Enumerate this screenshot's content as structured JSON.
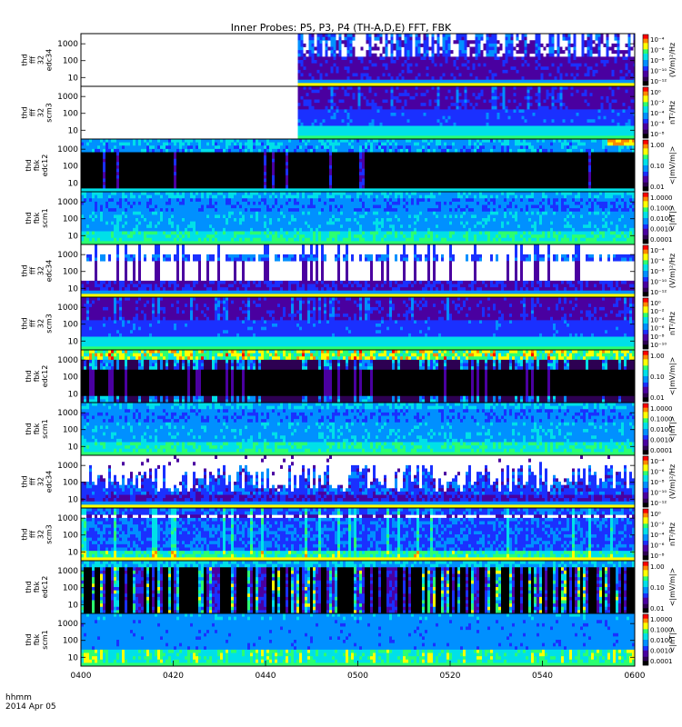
{
  "title": "Inner Probes: P5, P3, P4 (TH-A,D,E) FFT, FBK",
  "footer": {
    "format": "hhmm",
    "date": "2014 Apr 05"
  },
  "chart_data": {
    "type": "heatmap",
    "title": "Inner Probes: P5, P3, P4 (TH-A,D,E) FFT, FBK",
    "x_axis": {
      "ticks": [
        "0400",
        "0420",
        "0440",
        "0500",
        "0520",
        "0540",
        "0600"
      ],
      "start_minutes": 240,
      "end_minutes": 360,
      "format": "hhmm",
      "date": "2014 Apr 05"
    },
    "y_scale": "log",
    "colormap": [
      "#000000",
      "#2d0052",
      "#4a00a0",
      "#1a30ff",
      "#0090ff",
      "#00e0e8",
      "#2cff70",
      "#ffff00",
      "#ff8800",
      "#ff0000"
    ],
    "panels": [
      {
        "label": [
          "thd",
          "fff",
          "32",
          "edc34"
        ],
        "yticks": [
          "1000",
          "100",
          "10"
        ],
        "ylim": [
          3,
          4000
        ],
        "colorbar_ticks": [
          "10⁻⁴",
          "10⁻⁶",
          "10⁻⁸",
          "10⁻¹⁰",
          "10⁻¹²"
        ],
        "colorbar_label": "(V/m)²/Hz",
        "data_start_minutes": 287,
        "pattern": "efield_quiet"
      },
      {
        "label": [
          "thd",
          "fff",
          "32",
          "scm3"
        ],
        "yticks": [
          "1000",
          "100",
          "10"
        ],
        "ylim": [
          3,
          4000
        ],
        "colorbar_ticks": [
          "10⁰",
          "10⁻²",
          "10⁻⁴",
          "10⁻⁶",
          "10⁻⁸"
        ],
        "colorbar_label": "nT²/Hz",
        "data_start_minutes": 287,
        "pattern": "scm_fff"
      },
      {
        "label": [
          "thd",
          "fbk",
          "edc12"
        ],
        "yticks": [
          "1000",
          "100",
          "10"
        ],
        "ylim": [
          3,
          4000
        ],
        "colorbar_ticks": [
          "1.00",
          "0.10",
          "0.01"
        ],
        "colorbar_label": "<|mV/m|>",
        "pattern": "efbk_quiet"
      },
      {
        "label": [
          "thd",
          "fbk",
          "scm1"
        ],
        "yticks": [
          "1000",
          "100",
          "10"
        ],
        "ylim": [
          3,
          4000
        ],
        "colorbar_ticks": [
          "1.0000",
          "0.1000",
          "0.0100",
          "0.0010",
          "0.0001"
        ],
        "colorbar_label": "<|nT|>",
        "pattern": "scm_fbk"
      },
      {
        "label": [
          "thd",
          "fff",
          "32",
          "edc34"
        ],
        "yticks": [
          "1000",
          "100",
          "10"
        ],
        "ylim": [
          3,
          4000
        ],
        "colorbar_ticks": [
          "10⁻⁴",
          "10⁻⁶",
          "10⁻⁸",
          "10⁻¹⁰",
          "10⁻¹²"
        ],
        "colorbar_label": "(V/m)²/Hz",
        "pattern": "efield_mid"
      },
      {
        "label": [
          "thd",
          "fff",
          "32",
          "scm3"
        ],
        "yticks": [
          "1000",
          "100",
          "10"
        ],
        "ylim": [
          3,
          4000
        ],
        "colorbar_ticks": [
          "10⁰",
          "10⁻²",
          "10⁻⁴",
          "10⁻⁶",
          "10⁻⁸",
          "10⁻¹⁰"
        ],
        "colorbar_label": "nT²/Hz",
        "pattern": "scm_fff"
      },
      {
        "label": [
          "thd",
          "fbk",
          "edc12"
        ],
        "yticks": [
          "1000",
          "100",
          "10"
        ],
        "ylim": [
          3,
          4000
        ],
        "colorbar_ticks": [
          "1.00",
          "0.10",
          "0.01"
        ],
        "colorbar_label": "<|mV/m|>",
        "pattern": "efbk_active"
      },
      {
        "label": [
          "thd",
          "fbk",
          "scm1"
        ],
        "yticks": [
          "1000",
          "100",
          "10"
        ],
        "ylim": [
          3,
          4000
        ],
        "colorbar_ticks": [
          "1.0000",
          "0.1000",
          "0.0100",
          "0.0010",
          "0.0001"
        ],
        "colorbar_label": "<|nT|>",
        "pattern": "scm_fbk"
      },
      {
        "label": [
          "thd",
          "fff",
          "32",
          "edc34"
        ],
        "yticks": [
          "1000",
          "100",
          "10"
        ],
        "ylim": [
          3,
          4000
        ],
        "colorbar_ticks": [
          "10⁻⁴",
          "10⁻⁶",
          "10⁻⁸",
          "10⁻¹⁰",
          "10⁻¹²"
        ],
        "colorbar_label": "(V/m)²/Hz",
        "pattern": "efield_spiky"
      },
      {
        "label": [
          "thd",
          "fff",
          "32",
          "scm3"
        ],
        "yticks": [
          "1000",
          "100",
          "10"
        ],
        "ylim": [
          3,
          4000
        ],
        "colorbar_ticks": [
          "10⁰",
          "10⁻²",
          "10⁻⁴",
          "10⁻⁶",
          "10⁻⁸"
        ],
        "colorbar_label": "nT²/Hz",
        "pattern": "scm_fff_active"
      },
      {
        "label": [
          "thd",
          "fbk",
          "edc12"
        ],
        "yticks": [
          "1000",
          "100",
          "10"
        ],
        "ylim": [
          3,
          4000
        ],
        "colorbar_ticks": [
          "1.00",
          "0.10",
          "0.01"
        ],
        "colorbar_label": "<|mV/m|>",
        "pattern": "efbk_bursty"
      },
      {
        "label": [
          "thd",
          "fbk",
          "scm1"
        ],
        "yticks": [
          "1000",
          "100",
          "10"
        ],
        "ylim": [
          3,
          4000
        ],
        "colorbar_ticks": [
          "1.0000",
          "0.1000",
          "0.0100",
          "0.0010",
          "0.0001"
        ],
        "colorbar_label": "<|nT|>",
        "pattern": "scm_fbk_active"
      }
    ]
  }
}
